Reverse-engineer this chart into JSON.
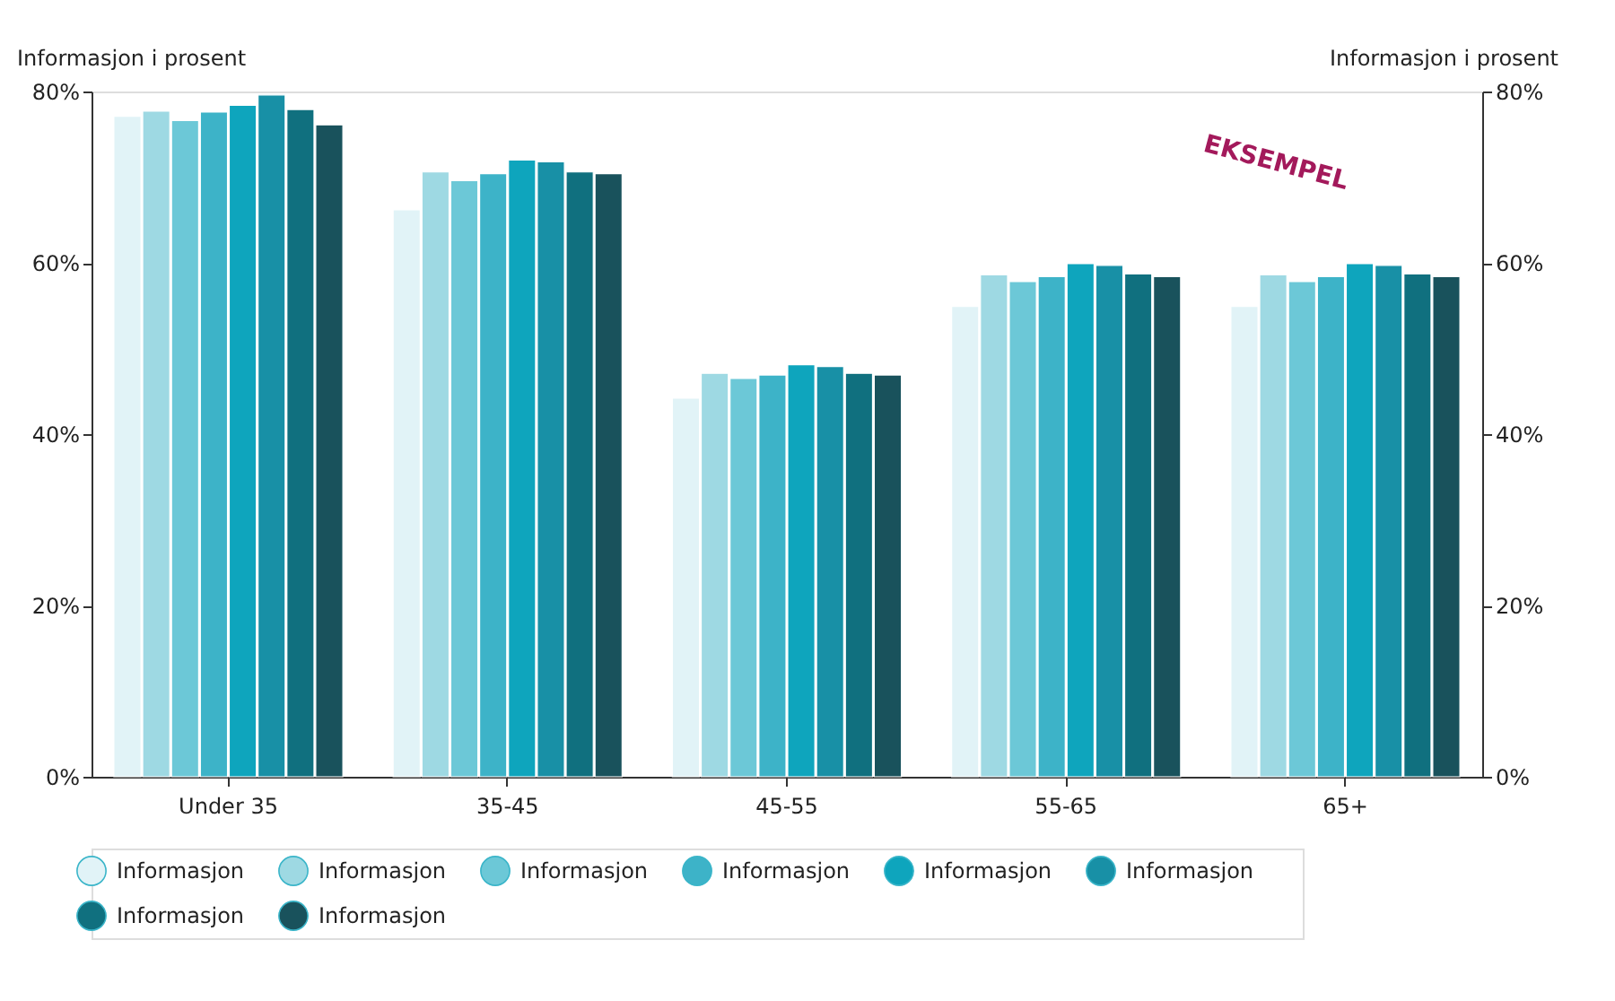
{
  "chart_data": {
    "type": "bar",
    "categories": [
      "Under 35",
      "35-45",
      "45-55",
      "55-65",
      "65+"
    ],
    "ylabel": "Informasjon i prosent",
    "y2label": "Informasjon i prosent",
    "ylim": [
      0,
      80
    ],
    "yticks": [
      {
        "value": 0,
        "label": "0%"
      },
      {
        "value": 20,
        "label": "20%"
      },
      {
        "value": 40,
        "label": "40%"
      },
      {
        "value": 60,
        "label": "60%"
      },
      {
        "value": 80,
        "label": "80%"
      }
    ],
    "y2lim": [
      0,
      80
    ],
    "y2ticks": [
      {
        "value": 0,
        "label": "0%"
      },
      {
        "value": 20,
        "label": "20%"
      },
      {
        "value": 40,
        "label": "40%"
      },
      {
        "value": 60,
        "label": "60%"
      },
      {
        "value": 80,
        "label": "80%"
      }
    ],
    "series": [
      {
        "name": "Informasjon",
        "color": "#e1f3f7",
        "values": [
          77.1,
          66.2,
          44.2,
          54.9,
          54.9
        ]
      },
      {
        "name": "Informasjon",
        "color": "#9ed9e3",
        "values": [
          77.7,
          70.6,
          47.1,
          58.6,
          58.6
        ]
      },
      {
        "name": "Informasjon",
        "color": "#6cc8d7",
        "values": [
          76.6,
          69.6,
          46.5,
          57.8,
          57.8
        ]
      },
      {
        "name": "Informasjon",
        "color": "#3db3c8",
        "values": [
          77.6,
          70.4,
          46.9,
          58.4,
          58.4
        ]
      },
      {
        "name": "Informasjon",
        "color": "#0ea5bd",
        "values": [
          78.4,
          72.0,
          48.1,
          59.9,
          59.9
        ]
      },
      {
        "name": "Informasjon",
        "color": "#1890a6",
        "values": [
          79.6,
          71.8,
          47.9,
          59.7,
          59.7
        ]
      },
      {
        "name": "Informasjon",
        "color": "#10707f",
        "values": [
          77.9,
          70.6,
          47.1,
          58.7,
          58.7
        ]
      },
      {
        "name": "Informasjon",
        "color": "#19525c",
        "values": [
          76.1,
          70.4,
          46.9,
          58.4,
          58.4
        ]
      }
    ],
    "annotations": [
      "EKSEMPEL"
    ],
    "legend": "bottom",
    "grid": false
  }
}
